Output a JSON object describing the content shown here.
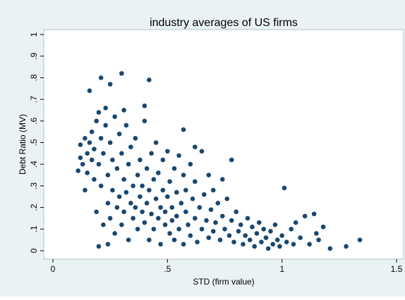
{
  "chart_data": {
    "type": "scatter",
    "title": "industry averages of US firms",
    "x_label": "STD (firm value)",
    "y_label": "Debt Ratio (MV)",
    "xlim": [
      0,
      1.5
    ],
    "ylim": [
      0,
      1
    ],
    "xticks": [
      0,
      {
        "value": 0.5,
        "label": ".5"
      },
      1,
      {
        "value": 1.5,
        "label": "1.5"
      }
    ],
    "yticks": [
      0,
      {
        "value": 0.1,
        "label": ".1"
      },
      {
        "value": 0.2,
        "label": ".2"
      },
      {
        "value": 0.3,
        "label": ".3"
      },
      {
        "value": 0.4,
        "label": ".4"
      },
      {
        "value": 0.5,
        "label": ".5"
      },
      {
        "value": 0.6,
        "label": ".6"
      },
      {
        "value": 0.7,
        "label": ".7"
      },
      {
        "value": 0.8,
        "label": ".8"
      },
      {
        "value": 0.9,
        "label": ".9"
      },
      1
    ],
    "grid": false,
    "x": [
      0.3,
      0.21,
      0.42,
      0.25,
      0.16,
      0.4,
      0.31,
      0.57,
      0.62,
      0.78,
      1.01,
      1.1,
      1.14,
      1.34,
      1.28,
      1.21,
      1.18,
      1.15,
      0.2,
      0.24,
      0.11,
      0.12,
      0.12,
      0.13,
      0.14,
      0.14,
      0.15,
      0.15,
      0.16,
      0.17,
      0.17,
      0.18,
      0.18,
      0.19,
      0.19,
      0.2,
      0.2,
      0.21,
      0.21,
      0.22,
      0.22,
      0.23,
      0.23,
      0.24,
      0.24,
      0.25,
      0.25,
      0.26,
      0.26,
      0.27,
      0.27,
      0.28,
      0.28,
      0.29,
      0.29,
      0.3,
      0.3,
      0.31,
      0.31,
      0.32,
      0.32,
      0.33,
      0.33,
      0.34,
      0.34,
      0.35,
      0.35,
      0.36,
      0.36,
      0.37,
      0.37,
      0.38,
      0.38,
      0.39,
      0.39,
      0.4,
      0.4,
      0.41,
      0.41,
      0.42,
      0.42,
      0.43,
      0.43,
      0.44,
      0.44,
      0.45,
      0.45,
      0.46,
      0.46,
      0.47,
      0.47,
      0.48,
      0.48,
      0.49,
      0.49,
      0.5,
      0.5,
      0.51,
      0.51,
      0.52,
      0.52,
      0.53,
      0.53,
      0.54,
      0.54,
      0.55,
      0.55,
      0.56,
      0.57,
      0.57,
      0.58,
      0.58,
      0.59,
      0.6,
      0.6,
      0.61,
      0.62,
      0.62,
      0.63,
      0.64,
      0.65,
      0.65,
      0.66,
      0.67,
      0.68,
      0.68,
      0.69,
      0.7,
      0.7,
      0.71,
      0.72,
      0.73,
      0.74,
      0.74,
      0.75,
      0.76,
      0.77,
      0.78,
      0.79,
      0.8,
      0.81,
      0.82,
      0.83,
      0.84,
      0.85,
      0.86,
      0.87,
      0.88,
      0.89,
      0.9,
      0.91,
      0.92,
      0.93,
      0.94,
      0.95,
      0.96,
      0.97,
      0.98,
      0.99,
      1.0,
      1.02,
      1.04,
      1.05,
      1.06,
      1.08,
      1.12,
      1.16
    ],
    "series": [
      {
        "color": "#1a476f",
        "values": [
          0.82,
          0.8,
          0.79,
          0.77,
          0.74,
          0.67,
          0.65,
          0.56,
          0.48,
          0.42,
          0.29,
          0.16,
          0.17,
          0.05,
          0.02,
          0.01,
          0.11,
          0.08,
          0.02,
          0.03,
          0.37,
          0.49,
          0.43,
          0.4,
          0.52,
          0.28,
          0.45,
          0.36,
          0.5,
          0.42,
          0.55,
          0.47,
          0.33,
          0.6,
          0.18,
          0.4,
          0.64,
          0.52,
          0.3,
          0.45,
          0.12,
          0.66,
          0.58,
          0.35,
          0.22,
          0.5,
          0.15,
          0.42,
          0.28,
          0.62,
          0.08,
          0.38,
          0.2,
          0.54,
          0.25,
          0.45,
          0.12,
          0.33,
          0.18,
          0.58,
          0.27,
          0.4,
          0.05,
          0.22,
          0.48,
          0.3,
          0.15,
          0.52,
          0.2,
          0.35,
          0.1,
          0.42,
          0.25,
          0.18,
          0.3,
          0.6,
          0.13,
          0.38,
          0.22,
          0.28,
          0.05,
          0.45,
          0.17,
          0.33,
          0.1,
          0.5,
          0.24,
          0.15,
          0.36,
          0.2,
          0.03,
          0.42,
          0.28,
          0.12,
          0.18,
          0.46,
          0.25,
          0.08,
          0.32,
          0.2,
          0.14,
          0.38,
          0.05,
          0.27,
          0.16,
          0.44,
          0.1,
          0.22,
          0.35,
          0.03,
          0.18,
          0.28,
          0.12,
          0.4,
          0.07,
          0.24,
          0.15,
          0.32,
          0.04,
          0.2,
          0.46,
          0.1,
          0.26,
          0.14,
          0.35,
          0.06,
          0.19,
          0.28,
          0.09,
          0.13,
          0.22,
          0.05,
          0.33,
          0.16,
          0.1,
          0.24,
          0.07,
          0.14,
          0.04,
          0.18,
          0.09,
          0.12,
          0.03,
          0.07,
          0.15,
          0.05,
          0.11,
          0.02,
          0.08,
          0.13,
          0.04,
          0.1,
          0.06,
          0.01,
          0.09,
          0.03,
          0.12,
          0.05,
          0.02,
          0.07,
          0.04,
          0.1,
          0.03,
          0.13,
          0.06,
          0.03,
          0.05
        ]
      }
    ]
  }
}
